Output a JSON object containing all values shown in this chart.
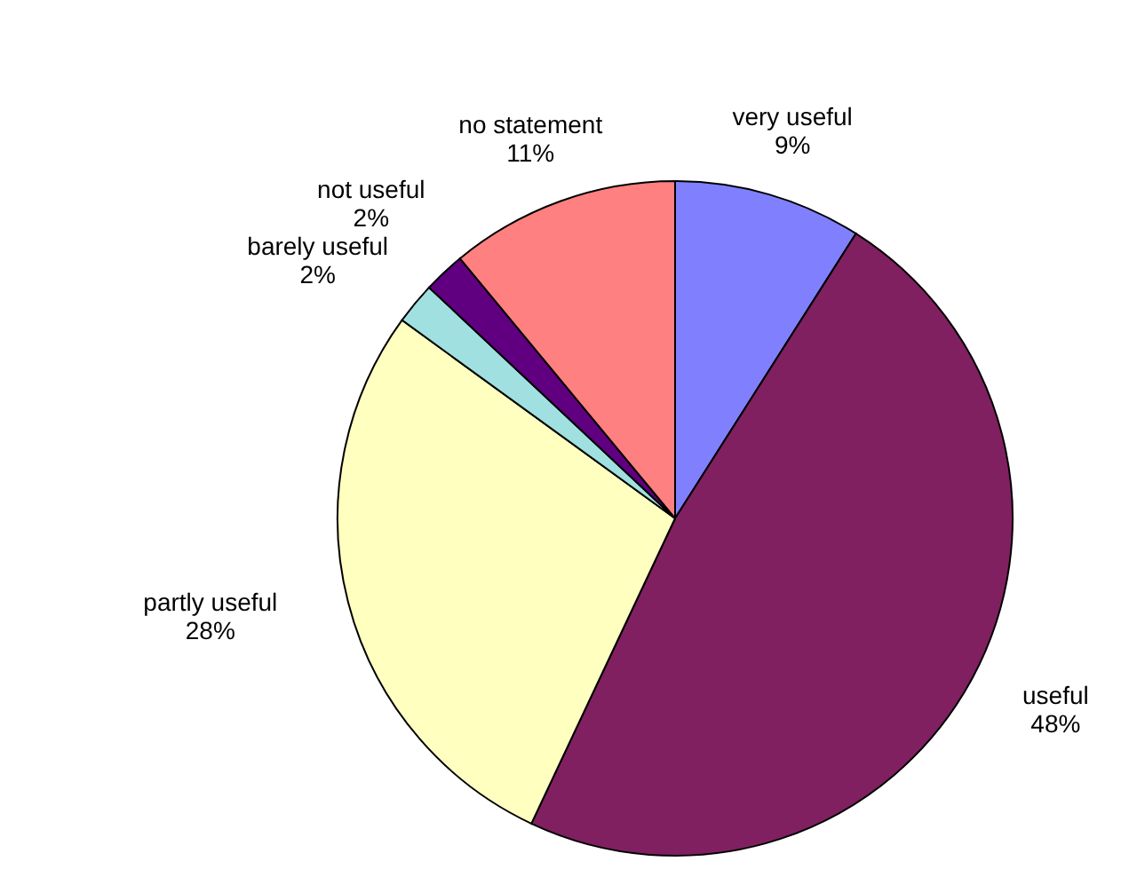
{
  "chart_data": {
    "type": "pie",
    "categories": [
      "very useful",
      "useful",
      "partly useful",
      "barely useful",
      "not useful",
      "no statement"
    ],
    "values": [
      9,
      48,
      28,
      2,
      2,
      11
    ],
    "value_labels": [
      "9%",
      "48%",
      "28%",
      "2%",
      "2%",
      "11%"
    ],
    "colors": [
      "#8080ff",
      "#802060",
      "#ffffc0",
      "#a0e0e0",
      "#600080",
      "#ff8080"
    ]
  }
}
